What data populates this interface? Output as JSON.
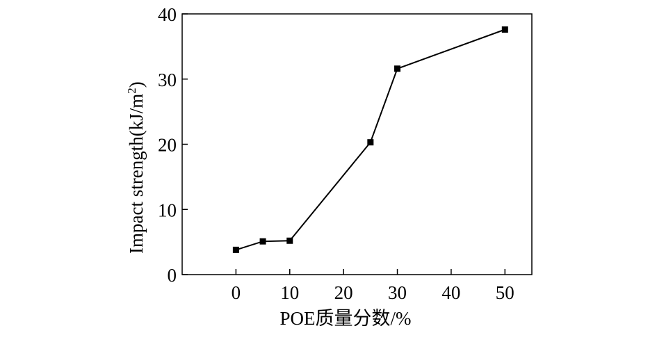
{
  "chart_data": {
    "type": "line",
    "title": "",
    "xlabel": "POE质量分数/%",
    "ylabel_main": "Impact strength(kJ/m",
    "ylabel_sup": "2",
    "ylabel_close": ")",
    "xlim": [
      -10,
      55
    ],
    "ylim": [
      0,
      40
    ],
    "xticks": [
      0,
      10,
      20,
      30,
      40,
      50
    ],
    "yticks": [
      0,
      10,
      20,
      30,
      40
    ],
    "grid": false,
    "legend": "none",
    "marker": "square",
    "series": [
      {
        "x": [
          0,
          5,
          10,
          25,
          30,
          50
        ],
        "y": [
          3.8,
          5.1,
          5.2,
          20.3,
          31.6,
          37.6
        ]
      }
    ]
  }
}
